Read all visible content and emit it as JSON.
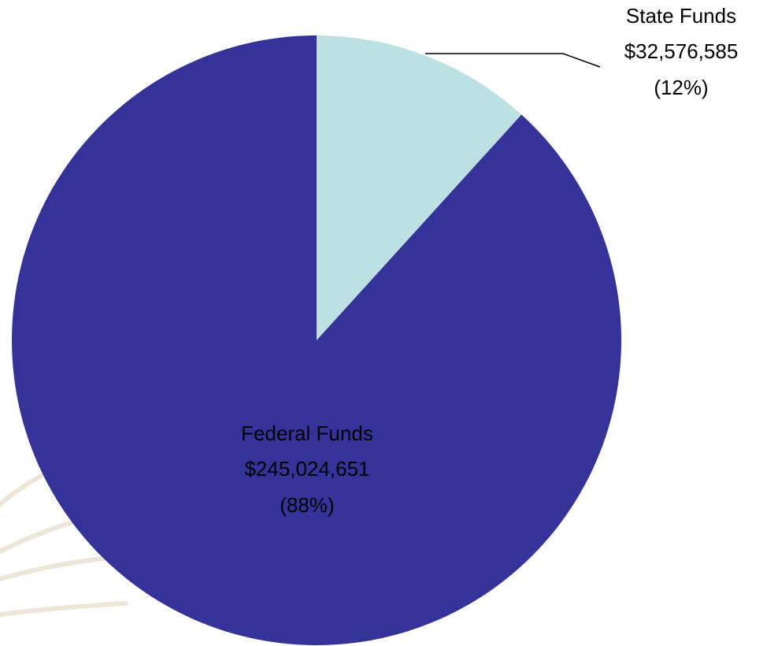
{
  "chart_data": {
    "type": "pie",
    "categories": [
      "State Funds",
      "Federal Funds"
    ],
    "values": [
      32576585,
      245024651
    ],
    "value_labels": [
      "$32,576,585",
      "$245,024,651"
    ],
    "percent_labels": [
      "(12%)",
      "(88%)"
    ],
    "colors": [
      "#bde0e3",
      "#333399"
    ]
  }
}
